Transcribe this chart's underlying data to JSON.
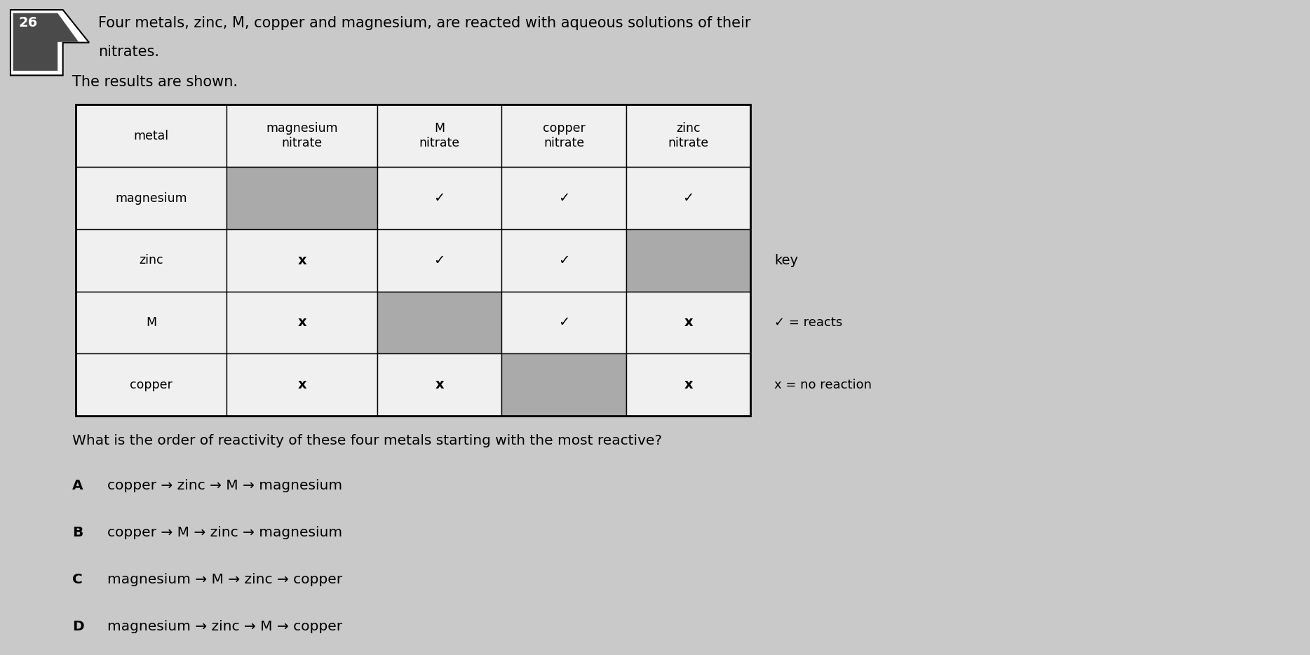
{
  "bg_color": "#c9c9c9",
  "gray_cell": "#aaaaaa",
  "white_cell": "#f0f0f0",
  "question_number": "26",
  "intro_line1": "Four metals, zinc, M, copper and magnesium, are reacted with aqueous solutions of their",
  "intro_line2": "nitrates.",
  "results_label": "The results are shown.",
  "col_headers": [
    "metal",
    "magnesium\nnitrate",
    "M\nnitrate",
    "copper\nnitrate",
    "zinc\nnitrate"
  ],
  "row_labels": [
    "magnesium",
    "zinc",
    "M",
    "copper"
  ],
  "table_data": [
    [
      "gray",
      "check",
      "check",
      "check"
    ],
    [
      "cross",
      "check",
      "check",
      "gray"
    ],
    [
      "cross",
      "gray",
      "check",
      "cross"
    ],
    [
      "cross",
      "cross",
      "gray",
      "cross"
    ]
  ],
  "key_label": "key",
  "key_check": "✓ = reacts",
  "key_cross": "x = no reaction",
  "question": "What is the order of reactivity of these four metals starting with the most reactive?",
  "options": [
    [
      "A",
      "copper → zinc → M → magnesium"
    ],
    [
      "B",
      "copper → M → zinc → magnesium"
    ],
    [
      "C",
      "magnesium → M → zinc → copper"
    ],
    [
      "D",
      "magnesium → zinc → M → copper"
    ]
  ]
}
